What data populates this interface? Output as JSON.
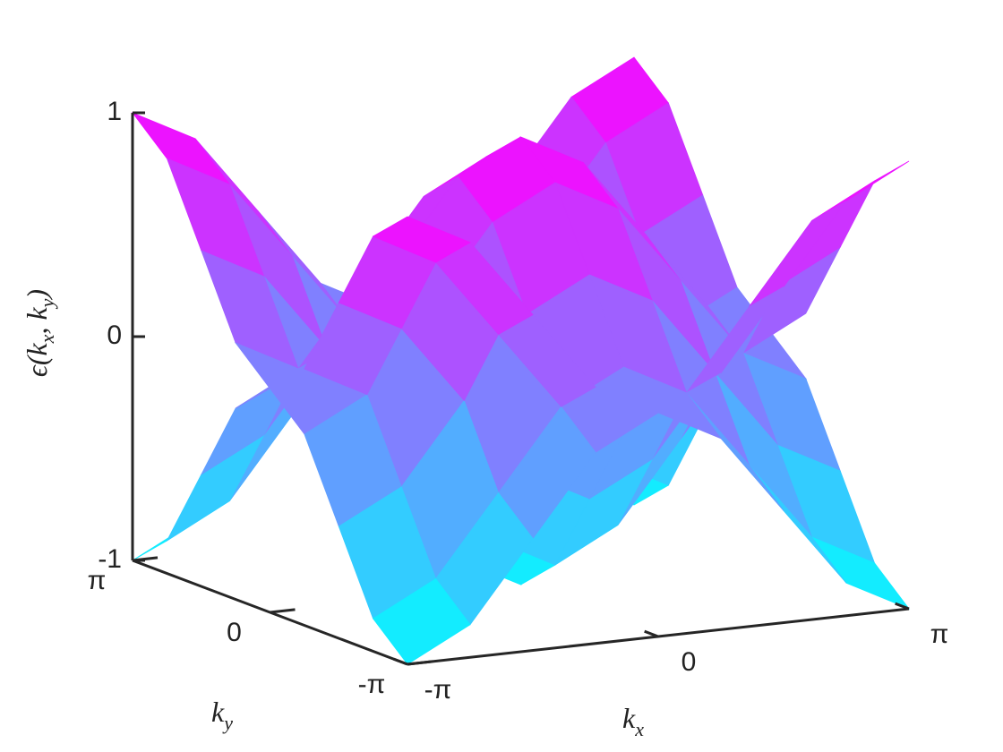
{
  "chart_data": {
    "type": "surface3d",
    "zlabel": [
      "ϵ(k",
      "x",
      ", k",
      "y",
      ")"
    ],
    "xlabel": [
      "k",
      "x"
    ],
    "ylabel": [
      "k",
      "y"
    ],
    "x": [
      -3.1416,
      -2.3562,
      -1.5708,
      -0.7854,
      0,
      0.7854,
      1.5708,
      2.3562,
      3.1416
    ],
    "y": [
      -3.1416,
      -2.3562,
      -1.5708,
      -0.7854,
      0,
      0.7854,
      1.5708,
      2.3562,
      3.1416
    ],
    "xlim": [
      -3.1416,
      3.1416
    ],
    "ylim": [
      -3.1416,
      3.1416
    ],
    "zlim": [
      -1,
      1
    ],
    "xticks": [
      {
        "value": -3.1416,
        "label": "-π"
      },
      0,
      {
        "value": 3.1416,
        "label": "π"
      }
    ],
    "yticks": [
      {
        "value": -3.1416,
        "label": "-π"
      },
      0,
      {
        "value": 3.1416,
        "label": "π"
      }
    ],
    "zticks": [
      -1,
      0,
      1
    ],
    "colormap": [
      "#00ffff",
      "#ff00ff"
    ],
    "surfaces": [
      {
        "z": [
          [
            -1,
            -0.854,
            -0.5,
            -0.146,
            0,
            -0.146,
            -0.5,
            -0.854,
            -1
          ],
          [
            -0.854,
            -0.707,
            -0.354,
            0,
            0.146,
            0,
            -0.354,
            -0.707,
            -0.854
          ],
          [
            -0.5,
            -0.354,
            0,
            0.354,
            0.5,
            0.354,
            0,
            -0.354,
            -0.5
          ],
          [
            -0.146,
            0,
            0.354,
            0.707,
            0.854,
            0.707,
            0.354,
            0,
            -0.146
          ],
          [
            0,
            0.146,
            0.5,
            0.854,
            1,
            0.854,
            0.5,
            0.146,
            0
          ],
          [
            -0.146,
            0,
            0.354,
            0.707,
            0.854,
            0.707,
            0.354,
            0,
            -0.146
          ],
          [
            -0.5,
            -0.354,
            0,
            0.354,
            0.5,
            0.354,
            0,
            -0.354,
            -0.5
          ],
          [
            -0.854,
            -0.707,
            -0.354,
            0,
            0.146,
            0,
            -0.354,
            -0.707,
            -0.854
          ],
          [
            -1,
            -0.854,
            -0.5,
            -0.146,
            0,
            -0.146,
            -0.5,
            -0.854,
            -1
          ]
        ]
      },
      {
        "z": [
          [
            1,
            0.854,
            0.5,
            0.146,
            0,
            0.146,
            0.5,
            0.854,
            1
          ],
          [
            0.854,
            0.707,
            0.354,
            0,
            -0.146,
            0,
            0.354,
            0.707,
            0.854
          ],
          [
            0.5,
            0.354,
            0,
            -0.354,
            -0.5,
            -0.354,
            0,
            0.354,
            0.5
          ],
          [
            0.146,
            0,
            -0.354,
            -0.707,
            -0.854,
            -0.707,
            -0.354,
            0,
            0.146
          ],
          [
            0,
            -0.146,
            -0.5,
            -0.854,
            -1,
            -0.854,
            -0.5,
            -0.146,
            0
          ],
          [
            0.146,
            0,
            -0.354,
            -0.707,
            -0.854,
            -0.707,
            -0.354,
            0,
            0.146
          ],
          [
            0.5,
            0.354,
            0,
            -0.354,
            -0.5,
            -0.354,
            0,
            0.354,
            0.5
          ],
          [
            0.854,
            0.707,
            0.354,
            0,
            -0.146,
            0,
            0.354,
            0.707,
            0.854
          ],
          [
            1,
            0.854,
            0.5,
            0.146,
            0,
            0.146,
            0.5,
            0.854,
            1
          ]
        ]
      }
    ]
  }
}
